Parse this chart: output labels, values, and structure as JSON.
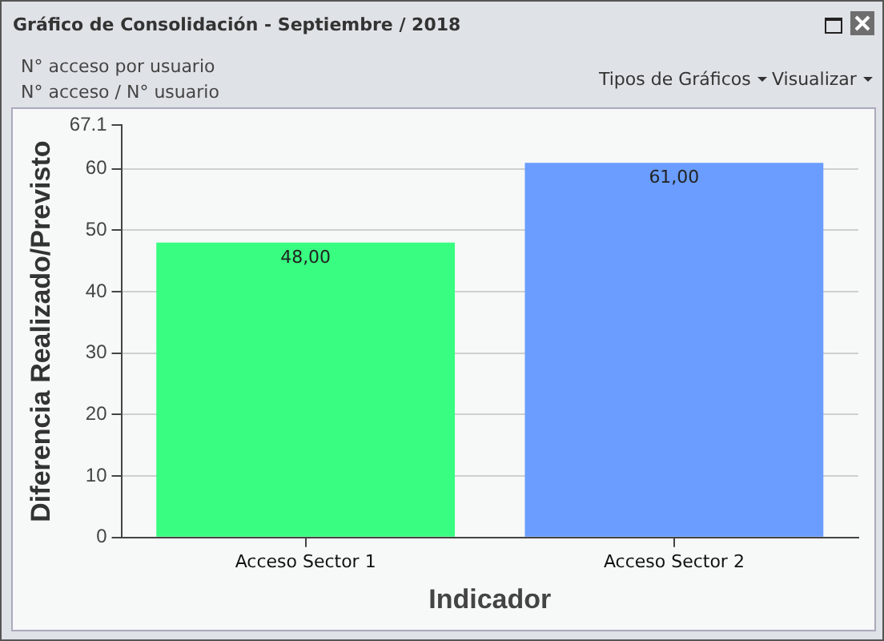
{
  "chart_data": {
    "type": "bar",
    "title": "Gráfico de Consolidación - Septiembre / 2018",
    "subtitle": "N° acceso por usuario",
    "annotations": [
      "N° acceso / N° usuario",
      "Tipos de Gráficos",
      "Visualizar"
    ],
    "categories": [
      "Acceso Sector 1",
      "Acceso Sector 2"
    ],
    "values": [
      48,
      61
    ],
    "colors": [
      "#38fd80",
      "#6a9dff"
    ],
    "value_labels": [
      "48,00",
      "61,00"
    ],
    "xlabel": "Indicador",
    "ylabel": "Diferencia Realizado/Previsto",
    "ylim": [
      0,
      67.1
    ],
    "yticks": [
      0,
      10,
      20,
      30,
      40,
      50,
      60,
      67.1
    ],
    "grid": "y",
    "legend": false
  }
}
